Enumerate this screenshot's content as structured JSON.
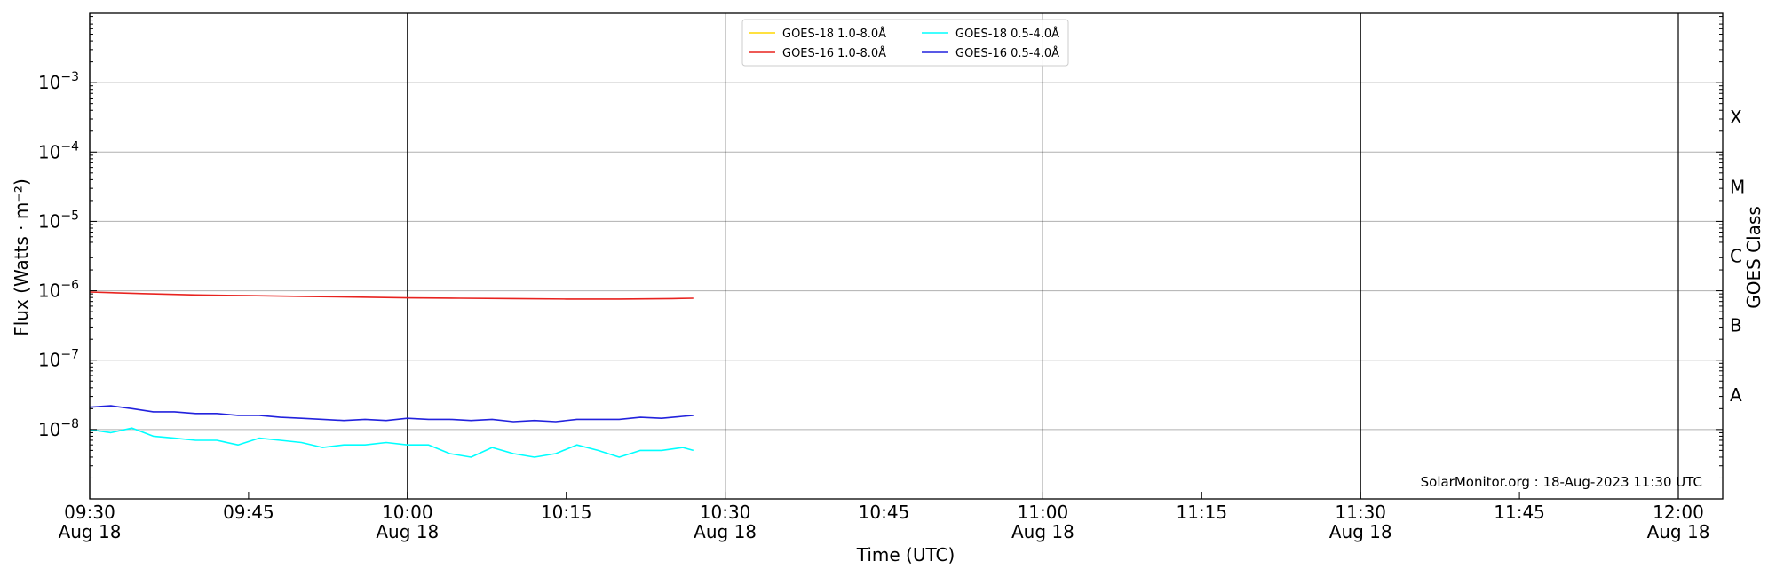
{
  "chart_data": {
    "type": "line",
    "xlabel": "Time (UTC)",
    "ylabel": "Flux (Watts · m⁻²)",
    "right_axis_label": "GOES Class",
    "y_scale": "log",
    "ylim": [
      1e-09,
      0.01
    ],
    "xlim": [
      "2023-08-18 09:30",
      "2023-08-18 12:07"
    ],
    "grid": "horizontal at decades; vertical lines at half-hours",
    "legend_position": "top-center",
    "annotation": "SolarMonitor.org : 18-Aug-2023 11:30 UTC",
    "y_tick_labels": [
      {
        "value": 1e-08,
        "base": "10",
        "exp": "−8"
      },
      {
        "value": 1e-07,
        "base": "10",
        "exp": "−7"
      },
      {
        "value": 1e-06,
        "base": "10",
        "exp": "−6"
      },
      {
        "value": 1e-05,
        "base": "10",
        "exp": "−5"
      },
      {
        "value": 0.0001,
        "base": "10",
        "exp": "−4"
      },
      {
        "value": 0.001,
        "base": "10",
        "exp": "−3"
      }
    ],
    "x_ticks": [
      {
        "time": "09:30",
        "line1": "09:30",
        "line2": "Aug 18"
      },
      {
        "time": "09:45",
        "line1": "09:45",
        "line2": ""
      },
      {
        "time": "10:00",
        "line1": "10:00",
        "line2": "Aug 18"
      },
      {
        "time": "10:15",
        "line1": "10:15",
        "line2": ""
      },
      {
        "time": "10:30",
        "line1": "10:30",
        "line2": "Aug 18"
      },
      {
        "time": "10:45",
        "line1": "10:45",
        "line2": ""
      },
      {
        "time": "11:00",
        "line1": "11:00",
        "line2": "Aug 18"
      },
      {
        "time": "11:15",
        "line1": "11:15",
        "line2": ""
      },
      {
        "time": "11:30",
        "line1": "11:30",
        "line2": "Aug 18"
      },
      {
        "time": "11:45",
        "line1": "11:45",
        "line2": ""
      },
      {
        "time": "12:00",
        "line1": "12:00",
        "line2": "Aug 18"
      }
    ],
    "goes_classes": [
      {
        "label": "A",
        "value": 3.16e-08
      },
      {
        "label": "B",
        "value": 3.16e-07
      },
      {
        "label": "C",
        "value": 3.16e-06
      },
      {
        "label": "M",
        "value": 3.16e-05
      },
      {
        "label": "X",
        "value": 0.000316
      }
    ],
    "series": [
      {
        "name": "GOES-18 1.0-8.0Å",
        "color": "#ffd700",
        "times": [],
        "values": []
      },
      {
        "name": "GOES-18 0.5-4.0Å",
        "color": "#00ffff",
        "times": [
          "09:30",
          "09:32",
          "09:34",
          "09:36",
          "09:38",
          "09:40",
          "09:42",
          "09:44",
          "09:46",
          "09:48",
          "09:50",
          "09:52",
          "09:54",
          "09:56",
          "09:58",
          "10:00",
          "10:02",
          "10:04",
          "10:06",
          "10:08",
          "10:10",
          "10:12",
          "10:14",
          "10:16",
          "10:18",
          "10:20",
          "10:22",
          "10:24",
          "10:26",
          "10:27"
        ],
        "values": [
          1e-08,
          9e-09,
          1.05e-08,
          8e-09,
          7.5e-09,
          7e-09,
          7e-09,
          6e-09,
          7.5e-09,
          7e-09,
          6.5e-09,
          5.5e-09,
          6e-09,
          6e-09,
          6.5e-09,
          6e-09,
          6e-09,
          4.5e-09,
          4e-09,
          5.5e-09,
          4.5e-09,
          4e-09,
          4.5e-09,
          6e-09,
          5e-09,
          4e-09,
          5e-09,
          5e-09,
          5.5e-09,
          5e-09
        ]
      },
      {
        "name": "GOES-16 1.0-8.0Å",
        "color": "#e8231f",
        "times": [
          "09:30",
          "09:35",
          "09:40",
          "09:45",
          "09:50",
          "09:55",
          "10:00",
          "10:05",
          "10:10",
          "10:15",
          "10:20",
          "10:25",
          "10:27"
        ],
        "values": [
          9.6e-07,
          9.1e-07,
          8.7e-07,
          8.5e-07,
          8.3e-07,
          8.1e-07,
          7.9e-07,
          7.8e-07,
          7.7e-07,
          7.6e-07,
          7.6e-07,
          7.7e-07,
          7.8e-07
        ]
      },
      {
        "name": "GOES-16 0.5-4.0Å",
        "color": "#2222dd",
        "times": [
          "09:30",
          "09:32",
          "09:34",
          "09:36",
          "09:38",
          "09:40",
          "09:42",
          "09:44",
          "09:46",
          "09:48",
          "09:50",
          "09:52",
          "09:54",
          "09:56",
          "09:58",
          "10:00",
          "10:02",
          "10:04",
          "10:06",
          "10:08",
          "10:10",
          "10:12",
          "10:14",
          "10:16",
          "10:18",
          "10:20",
          "10:22",
          "10:24",
          "10:26",
          "10:27"
        ],
        "values": [
          2.1e-08,
          2.2e-08,
          2e-08,
          1.8e-08,
          1.8e-08,
          1.7e-08,
          1.7e-08,
          1.6e-08,
          1.6e-08,
          1.5e-08,
          1.45e-08,
          1.4e-08,
          1.35e-08,
          1.4e-08,
          1.35e-08,
          1.45e-08,
          1.4e-08,
          1.4e-08,
          1.35e-08,
          1.4e-08,
          1.3e-08,
          1.35e-08,
          1.3e-08,
          1.4e-08,
          1.4e-08,
          1.4e-08,
          1.5e-08,
          1.45e-08,
          1.55e-08,
          1.6e-08
        ]
      }
    ]
  }
}
